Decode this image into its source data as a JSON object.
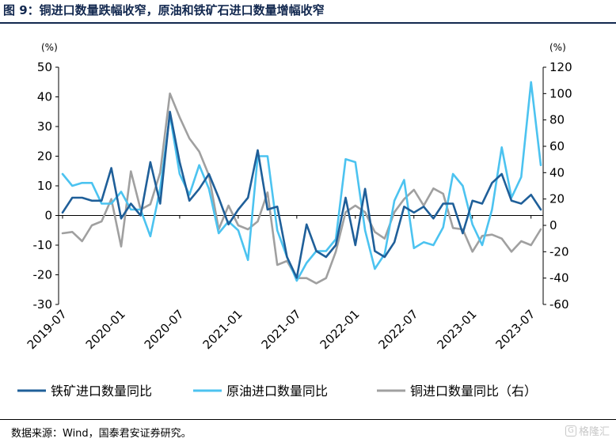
{
  "header": {
    "title": "图 9：铜进口数量跌幅收窄，原油和铁矿石进口数量增幅收窄"
  },
  "footer": {
    "source": "数据来源：Wind，国泰君安证券研究。",
    "watermark": "格隆汇",
    "watermark_icon": "G"
  },
  "colors": {
    "iron": "#1f5f99",
    "oil": "#4cc3f0",
    "copper": "#a0a0a0",
    "title": "#12284f"
  },
  "chart_data": {
    "type": "line",
    "left_unit": "(%)",
    "right_unit": "(%)",
    "y_left_range": [
      -30,
      50
    ],
    "y_left_ticks": [
      50,
      40,
      30,
      20,
      10,
      0,
      -10,
      -20,
      -30
    ],
    "y_right_range": [
      -60,
      120
    ],
    "y_right_ticks": [
      120,
      100,
      80,
      60,
      40,
      20,
      0,
      -20,
      -40,
      -60
    ],
    "x_tick_labels": [
      "2019-07",
      "2020-01",
      "2020-07",
      "2021-01",
      "2021-07",
      "2022-01",
      "2022-07",
      "2023-01",
      "2023-07"
    ],
    "grid": false,
    "legend_position": "bottom",
    "x": [
      "2019-07",
      "2019-08",
      "2019-09",
      "2019-10",
      "2019-11",
      "2019-12",
      "2020-01",
      "2020-02",
      "2020-03",
      "2020-04",
      "2020-05",
      "2020-06",
      "2020-07",
      "2020-08",
      "2020-09",
      "2020-10",
      "2020-11",
      "2020-12",
      "2021-01",
      "2021-02",
      "2021-03",
      "2021-04",
      "2021-05",
      "2021-06",
      "2021-07",
      "2021-08",
      "2021-09",
      "2021-10",
      "2021-11",
      "2021-12",
      "2022-01",
      "2022-02",
      "2022-03",
      "2022-04",
      "2022-05",
      "2022-06",
      "2022-07",
      "2022-08",
      "2022-09",
      "2022-10",
      "2022-11",
      "2022-12",
      "2023-01",
      "2023-02",
      "2023-03",
      "2023-04",
      "2023-05",
      "2023-06",
      "2023-07",
      "2023-08"
    ],
    "series": [
      {
        "name": "铁矿进口数量同比",
        "axis": "left",
        "color": "#1f5f99",
        "values": [
          1,
          6,
          6,
          5,
          5,
          16,
          -1,
          4,
          0,
          18,
          4,
          35,
          18,
          5,
          9,
          14,
          6,
          -3,
          2,
          6,
          22,
          2,
          3,
          -14,
          -21,
          -3,
          -12,
          -14,
          -10,
          6,
          -10,
          9,
          -12,
          -14,
          -9,
          3,
          1,
          3,
          -1,
          4,
          4,
          -6,
          5,
          4,
          11,
          14,
          5,
          4,
          7,
          2
        ]
      },
      {
        "name": "原油进口数量同比",
        "axis": "left",
        "color": "#4cc3f0",
        "values": [
          14,
          10,
          11,
          11,
          4,
          4,
          8,
          2,
          2,
          -7,
          9,
          34,
          14,
          7,
          17,
          9,
          -6,
          -2,
          -5,
          -15,
          20,
          20,
          -5,
          -14,
          -22,
          -16,
          -12,
          -12,
          -8,
          19,
          18,
          -5,
          -18,
          -13,
          5,
          12,
          -11,
          -9,
          -10,
          -4,
          14,
          10,
          -3,
          -10,
          2,
          23,
          6,
          13,
          45,
          17
        ]
      },
      {
        "name": "铜进口数量同比（右）",
        "axis": "right",
        "color": "#a0a0a0",
        "values": [
          -6,
          -5,
          -12,
          0,
          3,
          20,
          -16,
          41,
          12,
          16,
          40,
          100,
          82,
          66,
          56,
          38,
          -3,
          15,
          0,
          -3,
          3,
          25,
          -30,
          -27,
          -40,
          -40,
          -44,
          -40,
          -20,
          10,
          15,
          10,
          -5,
          -10,
          10,
          20,
          27,
          15,
          28,
          24,
          -2,
          -3,
          -20,
          -8,
          -7,
          -10,
          -20,
          -12,
          -15,
          -3
        ]
      }
    ]
  }
}
